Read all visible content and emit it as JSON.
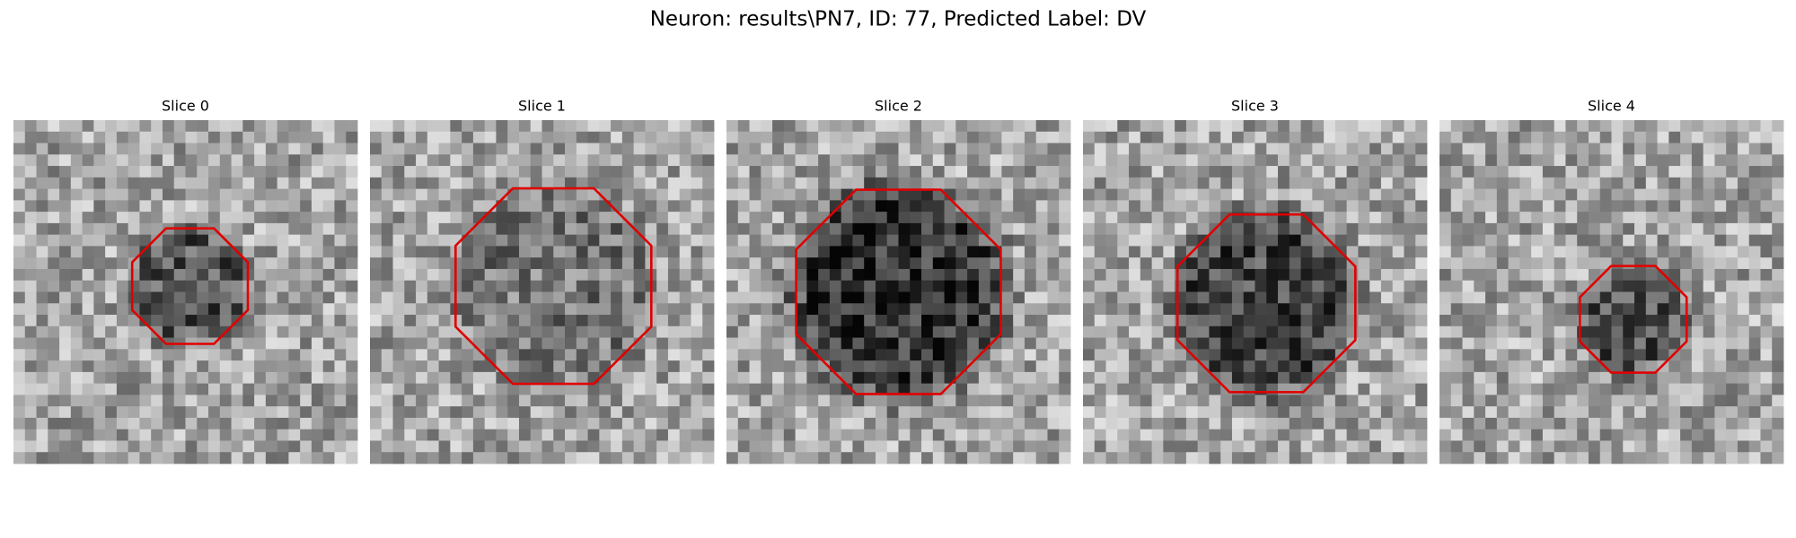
{
  "title": "Neuron: results\\PN7, ID: 77, Predicted Label: DV",
  "panels": [
    {
      "title": "Slice 0"
    },
    {
      "title": "Slice 1"
    },
    {
      "title": "Slice 2"
    },
    {
      "title": "Slice 3"
    },
    {
      "title": "Slice 4"
    }
  ]
}
